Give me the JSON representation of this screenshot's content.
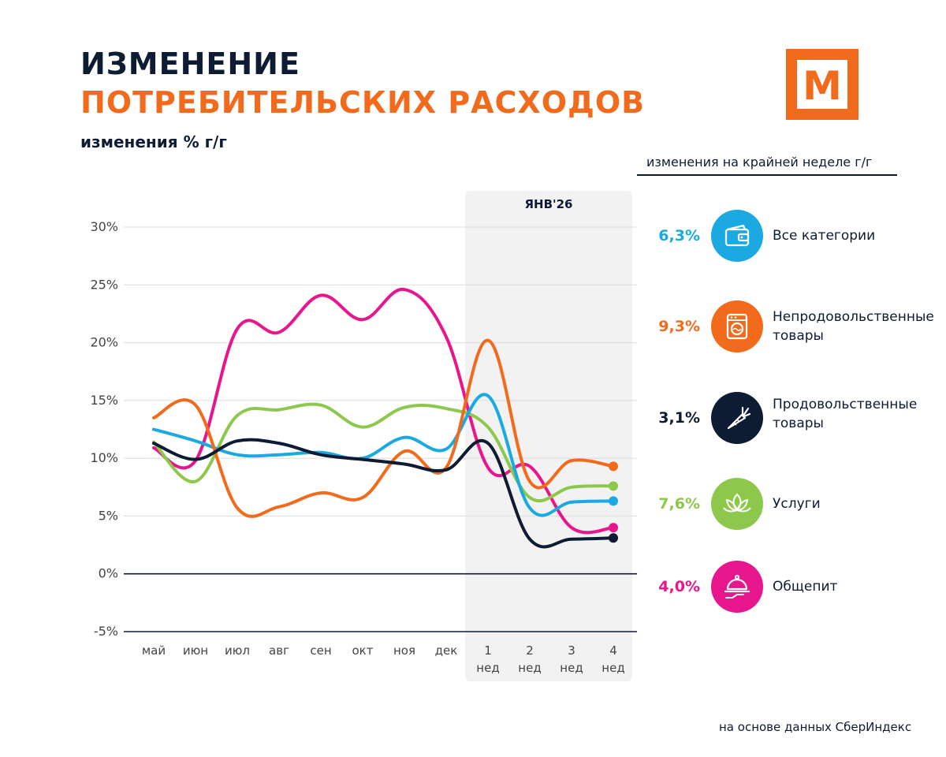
{
  "header": {
    "title_line1": "ИЗМЕНЕНИЕ",
    "title_line2": "ПОТРЕБИТЕЛЬСКИХ РАСХОДОВ",
    "subtitle": "изменения % г/г",
    "logo_letter": "М"
  },
  "legend": {
    "header": "изменения на крайней неделе г/г",
    "items": [
      {
        "value": "6,3%",
        "label": "Все категории",
        "color": "#1aa9e0",
        "icon": "wallet-icon"
      },
      {
        "value": "9,3%",
        "label": "Непродовольственные товары",
        "color": "#f26b1d",
        "icon": "washing-machine-icon"
      },
      {
        "value": "3,1%",
        "label": "Продовольственные товары",
        "color": "#0d1b33",
        "icon": "carrot-icon"
      },
      {
        "value": "7,6%",
        "label": "Услуги",
        "color": "#8dc84c",
        "icon": "lotus-icon"
      },
      {
        "value": "4,0%",
        "label": "Общепит",
        "color": "#e8168c",
        "icon": "cloche-icon"
      }
    ]
  },
  "source": "на основе данных СберИндекс",
  "chart_data": {
    "type": "line",
    "title": "ИЗМЕНЕНИЕ ПОТРЕБИТЕЛЬСКИХ РАСХОДОВ",
    "ylabel": "изменения % г/г",
    "xlabel": "",
    "ylim": [
      -5,
      30
    ],
    "yticks": [
      30,
      25,
      20,
      15,
      10,
      5,
      0,
      -5
    ],
    "ytick_labels": [
      "30%",
      "25%",
      "20%",
      "15%",
      "10%",
      "5%",
      "0%",
      "-5%"
    ],
    "grid": true,
    "highlight": {
      "label": "ЯНВ'26",
      "from_index": 8,
      "to_index": 11
    },
    "categories": [
      "май",
      "июн",
      "июл",
      "авг",
      "сен",
      "окт",
      "ноя",
      "дек",
      "1 нед",
      "2 нед",
      "3 нед",
      "4 нед"
    ],
    "category_lines": [
      [
        "май"
      ],
      [
        "июн"
      ],
      [
        "июл"
      ],
      [
        "авг"
      ],
      [
        "сен"
      ],
      [
        "окт"
      ],
      [
        "ноя"
      ],
      [
        "дек"
      ],
      [
        "1",
        "нед"
      ],
      [
        "2",
        "нед"
      ],
      [
        "3",
        "нед"
      ],
      [
        "4",
        "нед"
      ]
    ],
    "series": [
      {
        "name": "Общепит",
        "color": "#e8168c",
        "values": [
          10.9,
          9.8,
          21.2,
          20.9,
          24.1,
          22.0,
          24.6,
          20.5,
          9.2,
          9.3,
          4.0,
          4.0
        ]
      },
      {
        "name": "Услуги",
        "color": "#8dc84c",
        "values": [
          11.4,
          8.0,
          13.7,
          14.2,
          14.6,
          12.7,
          14.4,
          14.3,
          12.7,
          6.6,
          7.5,
          7.6
        ]
      },
      {
        "name": "Все категории",
        "color": "#1aa9e0",
        "values": [
          12.5,
          11.5,
          10.3,
          10.3,
          10.5,
          10.0,
          11.8,
          10.8,
          15.4,
          5.7,
          6.2,
          6.3
        ]
      },
      {
        "name": "Непродовольственные товары",
        "color": "#f26b1d",
        "values": [
          13.5,
          14.6,
          5.7,
          5.8,
          7.0,
          6.6,
          10.6,
          9.2,
          20.2,
          8.0,
          9.8,
          9.3
        ]
      },
      {
        "name": "Продовольственные товары",
        "color": "#0d1b33",
        "values": [
          11.3,
          9.9,
          11.5,
          11.3,
          10.3,
          9.9,
          9.5,
          9.0,
          11.3,
          3.0,
          3.0,
          3.1
        ]
      }
    ]
  }
}
